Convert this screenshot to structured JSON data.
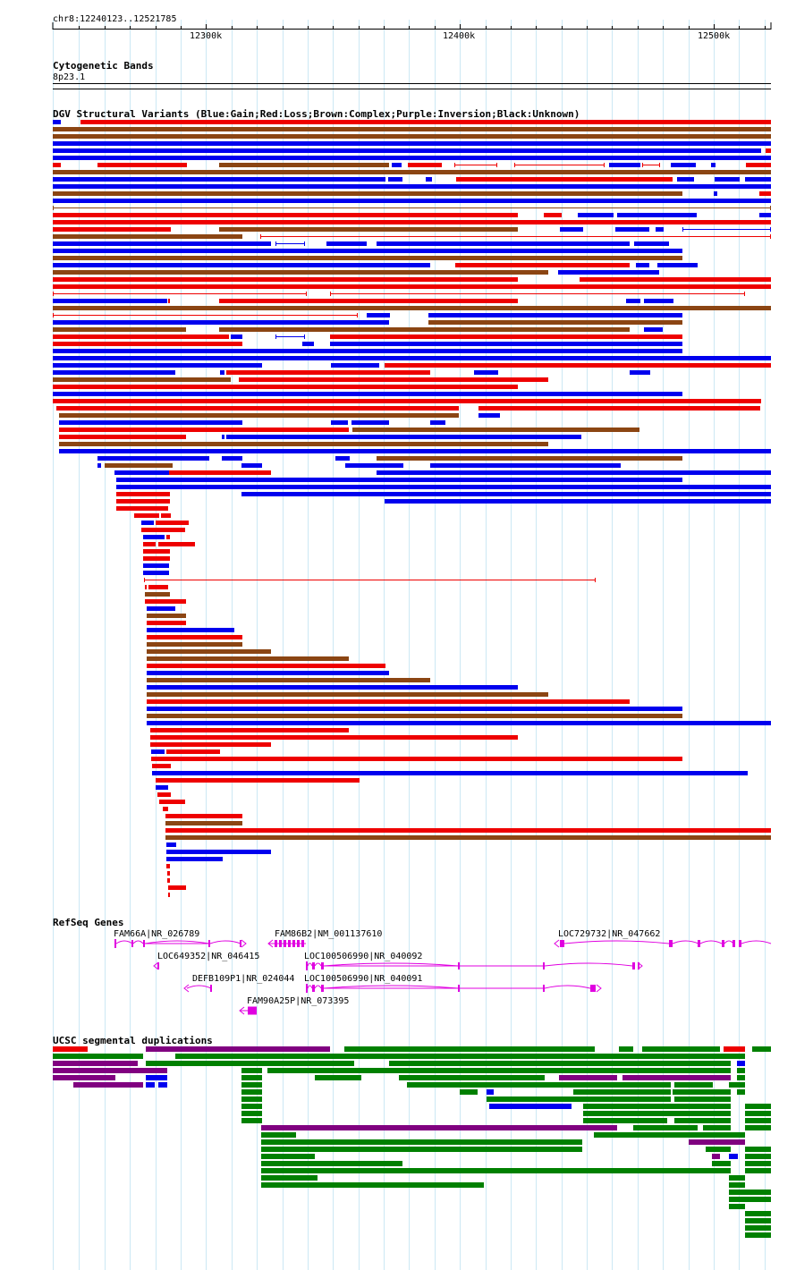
{
  "ruler": {
    "position": "chr8:12240123..12521785",
    "ticks": [
      "12300k",
      "12400k",
      "12500k"
    ]
  },
  "cytobands": {
    "title": "Cytogenetic Bands",
    "band": "8p23.1"
  },
  "dgv": {
    "title": "DGV Structural Variants (Blue:Gain;Red:Loss;Brown:Complex;Purple:Inversion;Black:Unknown)",
    "colors": {
      "gain": "#0000ee",
      "loss": "#ee0000",
      "complex": "#8b4513",
      "inversion": "#800080"
    }
  },
  "refseq": {
    "title": "RefSeq Genes",
    "color": "#e000e0",
    "genes": [
      "FAM66A|NR_026789",
      "FAM86B2|NM_001137610",
      "LOC729732|NR_047662",
      "LOC649352|NR_046415",
      "LOC100506990|NR_040092",
      "DEFB109P1|NR_024044",
      "LOC100506990|NR_040091",
      "FAM90A25P|NR_073395"
    ]
  },
  "segdups": {
    "title": "UCSC segmental duplications",
    "colors": {
      "high": "#008000",
      "mid": "#800080",
      "low": "#ee0000",
      "other": "#0000ee"
    }
  }
}
